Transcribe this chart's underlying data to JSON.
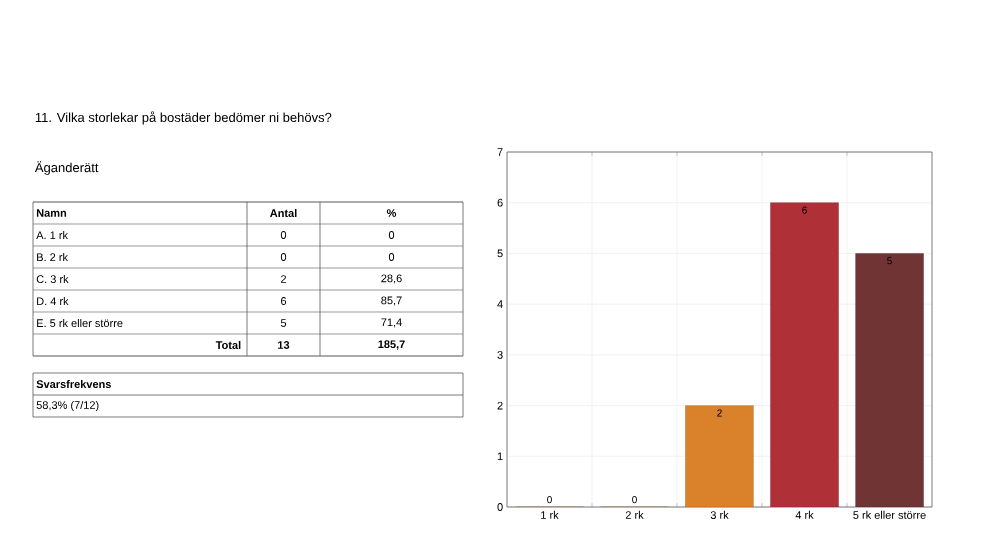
{
  "chart_data": {
    "type": "bar",
    "title": "11. Vilka storlekar på bostäder bedömer ni behövs?",
    "subtitle": "Äganderätt",
    "categories": [
      "1 rk",
      "2 rk",
      "3 rk",
      "4 rk",
      "5 rk eller större"
    ],
    "values": [
      0,
      0,
      2,
      6,
      5
    ],
    "colors": [
      "#d9822b",
      "#d9822b",
      "#d9822b",
      "#b03038",
      "#713435"
    ],
    "ylim": [
      0,
      7
    ],
    "yticks": [
      0,
      1,
      2,
      3,
      4,
      5,
      6,
      7
    ],
    "grid": true,
    "data_labels": true,
    "annotations": [
      "Namn",
      "Antal",
      "%",
      "A.  1 rk",
      "0",
      "0",
      "B. 2 rk",
      "0",
      "0",
      "C. 3 rk",
      "2",
      "28,6",
      "D. 4 rk",
      "6",
      "85,7",
      "E. 5 rk eller större",
      "5",
      "71,4",
      "Total",
      "13",
      "185,7",
      "Svarsfrekvens",
      "58,3% (7/12)"
    ]
  }
}
